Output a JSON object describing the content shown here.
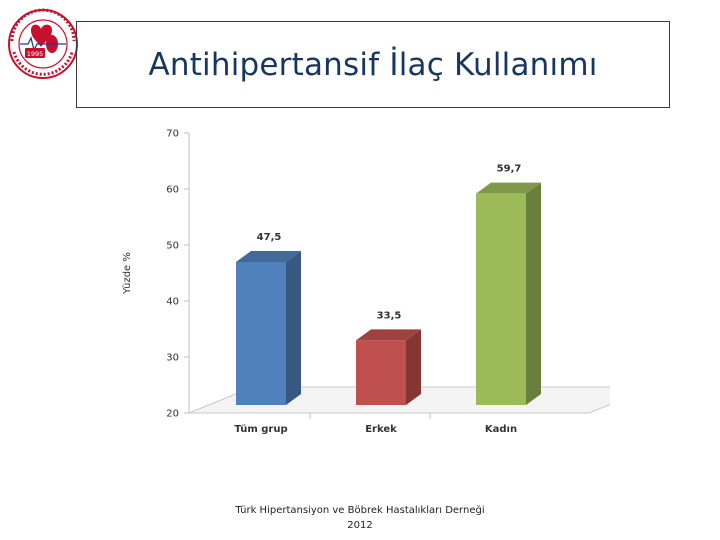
{
  "logo": {
    "ring_text": "TÜRK HİPERTANSİYON VE BÖBREK HASTALIKLARI DERNEĞİ",
    "year": "1995"
  },
  "header": {
    "title": "Antihipertansif İlaç Kullanımı"
  },
  "chart_data": {
    "type": "bar",
    "categories": [
      "Tüm grup",
      "Erkek",
      "Kadın"
    ],
    "values": [
      47.5,
      33.5,
      59.7
    ],
    "value_labels": [
      "47,5",
      "33,5",
      "59,7"
    ],
    "colors": [
      "#4f81bd",
      "#c0504d",
      "#9bbb59"
    ],
    "title": "",
    "xlabel": "",
    "ylabel": "Yüzde %",
    "ylim": [
      20,
      70
    ],
    "yticks": [
      20,
      30,
      40,
      50,
      60,
      70
    ],
    "style": "3d",
    "grid": false,
    "legend": "none"
  },
  "footer": {
    "line1": "Türk Hipertansiyon ve Böbrek Hastalıkları Derneği",
    "line2": "2012"
  }
}
